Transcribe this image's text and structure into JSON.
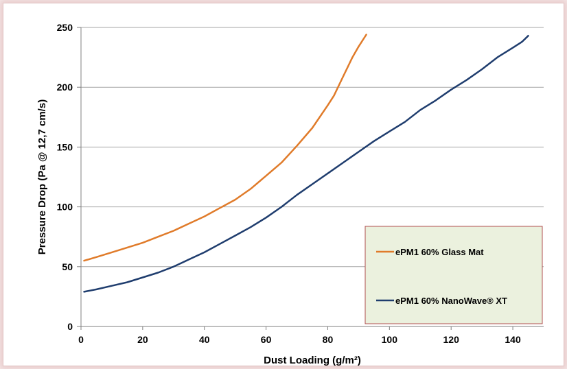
{
  "chart_data": {
    "type": "line",
    "xlabel": "Dust Loading (g/m²)",
    "ylabel": "Pressure Drop (Pa @ 12,7 cm/s)",
    "xlim": [
      0,
      150
    ],
    "ylim": [
      0,
      250
    ],
    "x_ticks": [
      "0",
      "20",
      "40",
      "60",
      "80",
      "100",
      "120",
      "140"
    ],
    "y_ticks": [
      "0",
      "50",
      "100",
      "150",
      "200",
      "250"
    ],
    "grid": "horizontal",
    "legend_position": "bottom-right",
    "colors": {
      "glass_mat": "#e07b2a",
      "nanowave": "#1f3d6e",
      "legend_bg": "#ebf1de",
      "legend_border": "#b05050"
    },
    "series": [
      {
        "name": "ePM1 60% Glass Mat",
        "color": "#e07b2a",
        "x": [
          1,
          5,
          10,
          15,
          20,
          25,
          30,
          35,
          40,
          45,
          50,
          55,
          60,
          65,
          70,
          75,
          80,
          82,
          85,
          88,
          90,
          92.5
        ],
        "y": [
          55,
          58,
          62,
          66,
          70,
          75,
          80,
          86,
          92,
          99,
          106,
          115,
          126,
          137,
          151,
          166,
          185,
          193,
          209,
          225,
          234,
          244
        ]
      },
      {
        "name": "ePM1 60% NanoWave® XT",
        "color": "#1f3d6e",
        "x": [
          1,
          5,
          10,
          15,
          20,
          25,
          30,
          35,
          40,
          45,
          50,
          55,
          60,
          65,
          70,
          75,
          80,
          85,
          90,
          95,
          100,
          105,
          110,
          115,
          120,
          125,
          130,
          135,
          140,
          143,
          145
        ],
        "y": [
          29,
          31,
          34,
          37,
          41,
          45,
          50,
          56,
          62,
          69,
          76,
          83,
          91,
          100,
          110,
          119,
          128,
          137,
          146,
          155,
          163,
          171,
          181,
          189,
          198,
          206,
          215,
          225,
          233,
          238,
          243
        ]
      }
    ]
  }
}
